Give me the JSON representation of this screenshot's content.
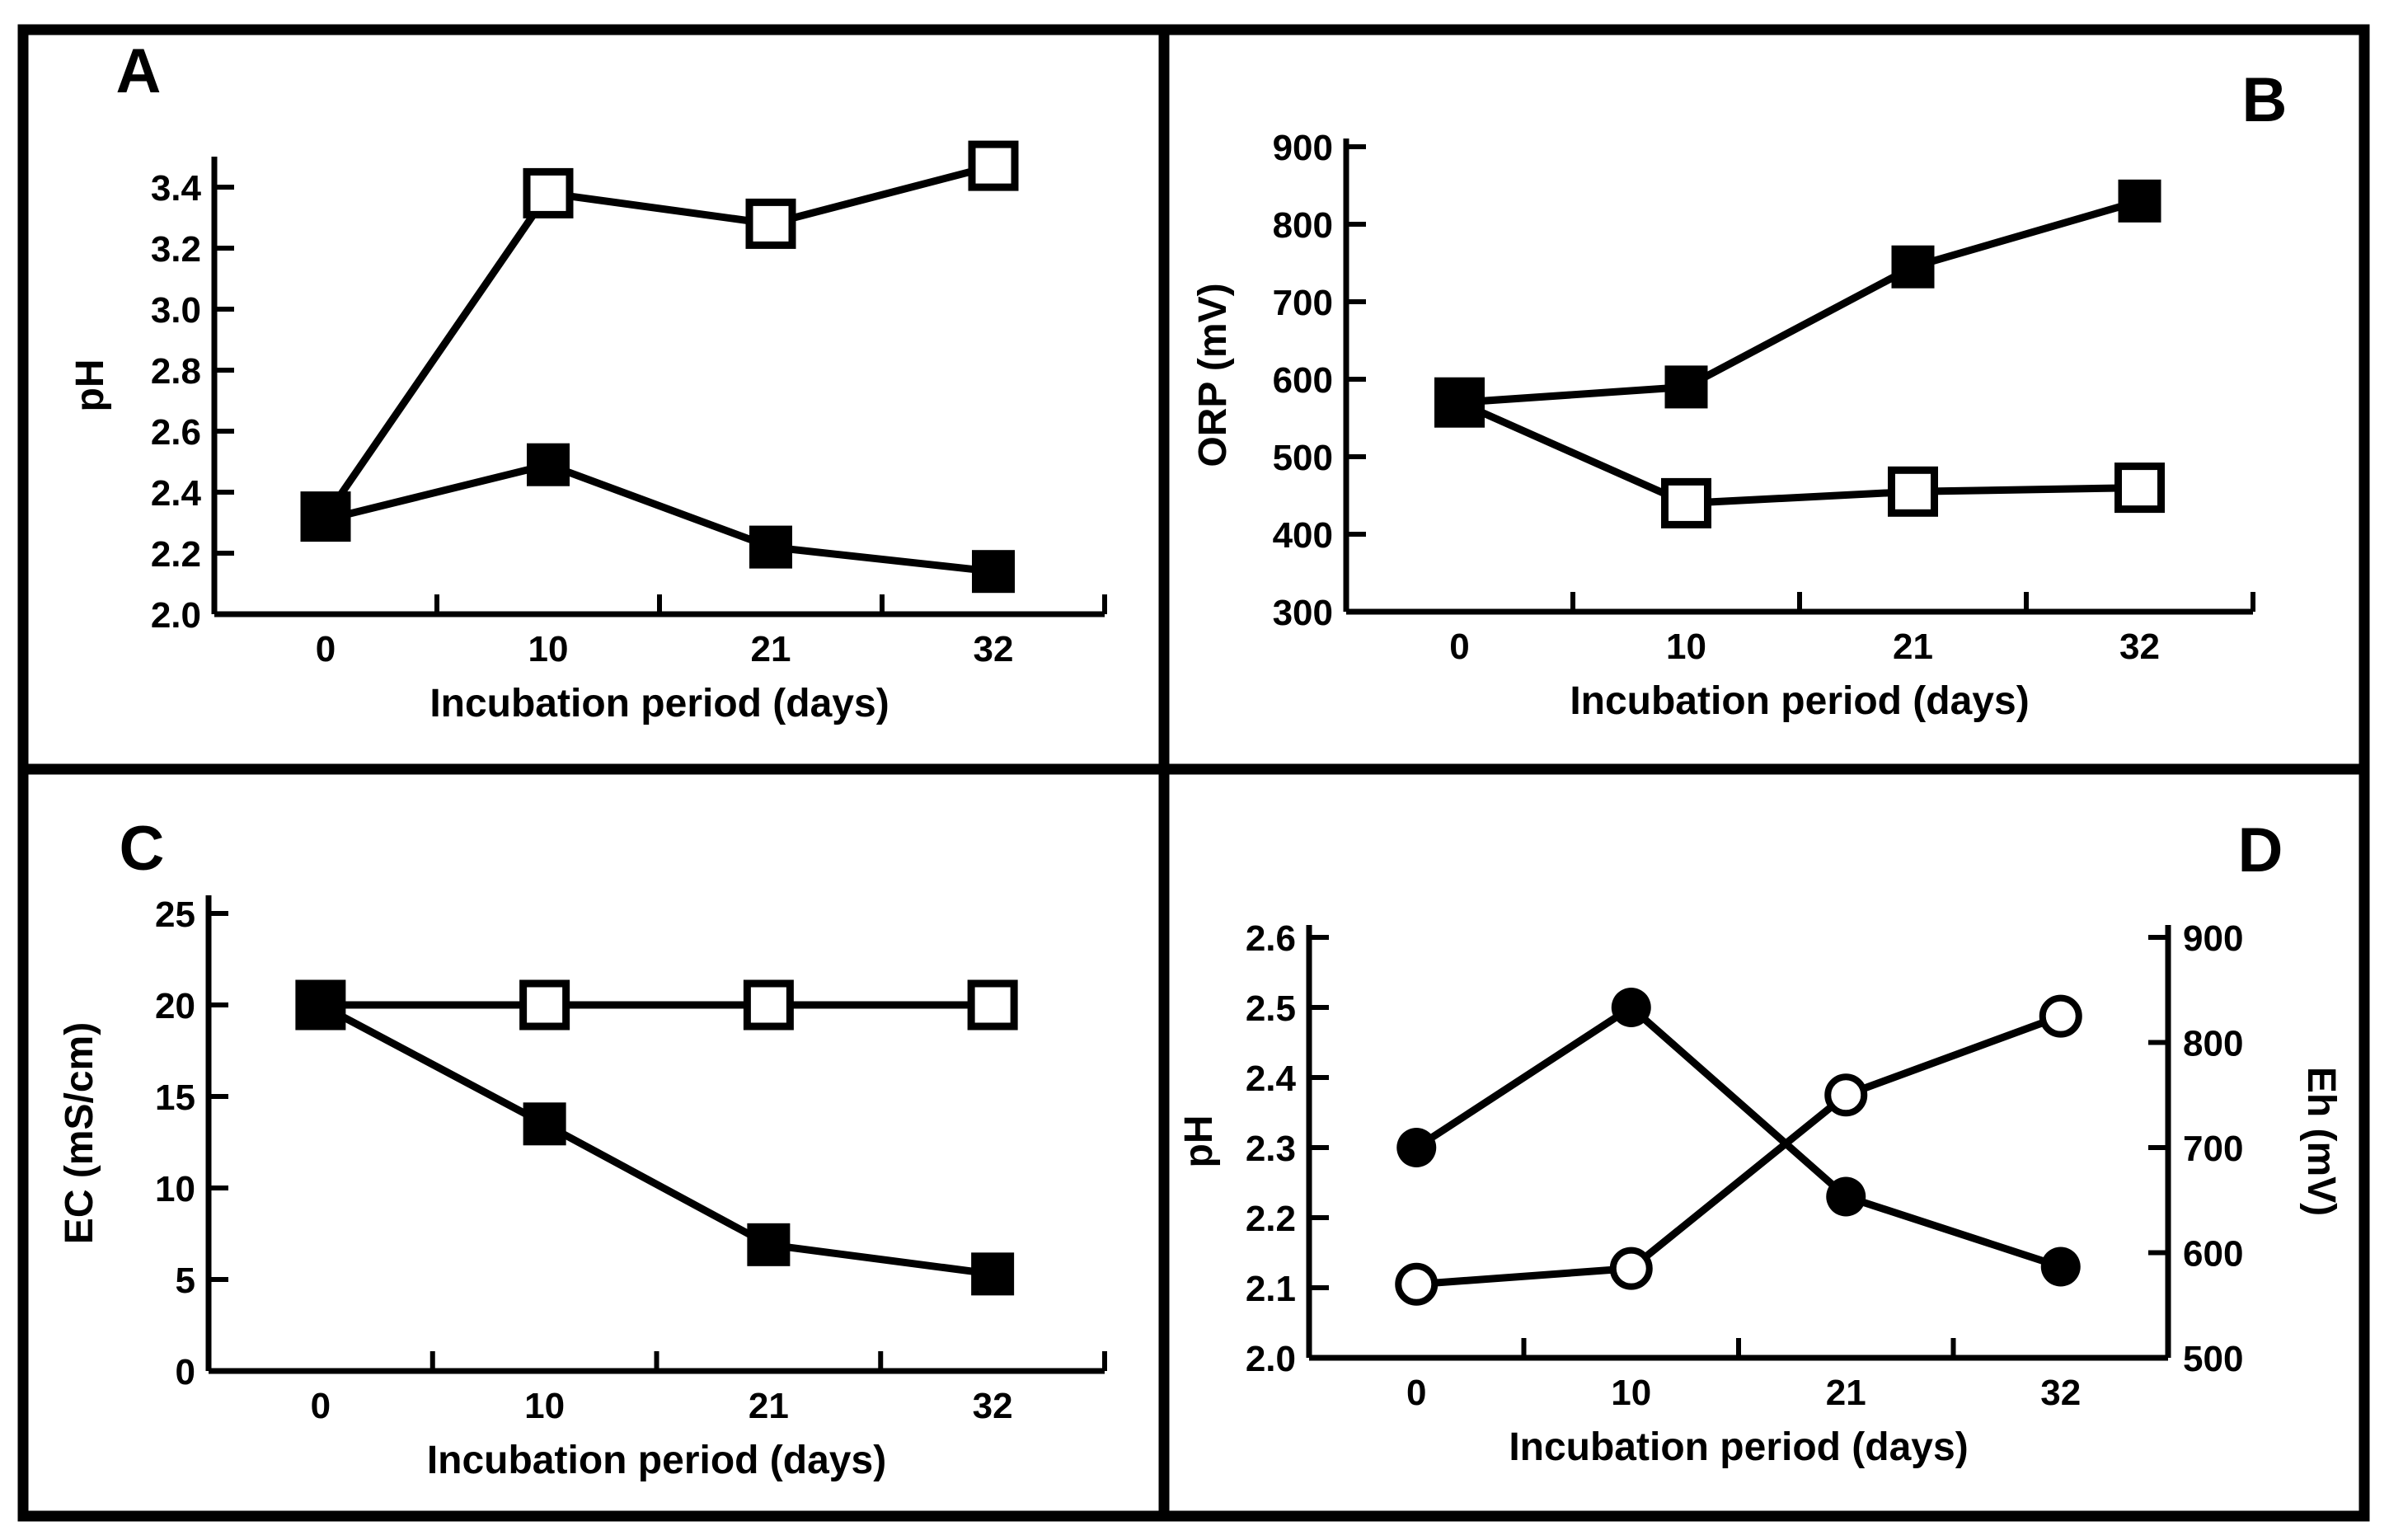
{
  "figure": {
    "description_visible_text_only": "",
    "colors": {
      "foreground": "#000000",
      "background": "#ffffff"
    }
  },
  "chart_data": [
    {
      "panel_label": "A",
      "type": "line",
      "xlabel": "Incubation period (days)",
      "ylabel": "pH",
      "x_categories": [
        "0",
        "10",
        "21",
        "32"
      ],
      "yticks": [
        2.0,
        2.2,
        2.4,
        2.6,
        2.8,
        3.0,
        3.2,
        3.4
      ],
      "ytick_labels": [
        "2.0",
        "2.2",
        "2.4",
        "2.6",
        "2.8",
        "3.0",
        "3.2",
        "3.4"
      ],
      "ylim": [
        2.0,
        3.5
      ],
      "grid": "off",
      "legend": "none",
      "series": [
        {
          "name": "open squares",
          "marker": "square-open",
          "values": [
            2.32,
            3.38,
            3.28,
            3.47
          ]
        },
        {
          "name": "filled squares",
          "marker": "square-filled",
          "values": [
            2.31,
            2.49,
            2.22,
            2.14
          ]
        }
      ]
    },
    {
      "panel_label": "B",
      "type": "line",
      "xlabel": "Incubation period (days)",
      "ylabel": "ORP (mV)",
      "x_categories": [
        "0",
        "10",
        "21",
        "32"
      ],
      "yticks": [
        300,
        400,
        500,
        600,
        700,
        800,
        900
      ],
      "ytick_labels": [
        "300",
        "400",
        "500",
        "600",
        "700",
        "800",
        "900"
      ],
      "ylim": [
        300,
        910
      ],
      "grid": "off",
      "legend": "none",
      "series": [
        {
          "name": "open squares",
          "marker": "square-open",
          "values": [
            570,
            440,
            455,
            460
          ]
        },
        {
          "name": "filled squares",
          "marker": "square-filled",
          "values": [
            570,
            590,
            745,
            830
          ]
        }
      ]
    },
    {
      "panel_label": "C",
      "type": "line",
      "xlabel": "Incubation period (days)",
      "ylabel": "EC (mS/cm)",
      "x_categories": [
        "0",
        "10",
        "21",
        "32"
      ],
      "yticks": [
        0,
        5,
        10,
        15,
        20,
        25
      ],
      "ytick_labels": [
        "0",
        "5",
        "10",
        "15",
        "20",
        "25"
      ],
      "ylim": [
        0,
        26
      ],
      "grid": "off",
      "legend": "none",
      "series": [
        {
          "name": "open squares",
          "marker": "square-open",
          "values": [
            20,
            20,
            20,
            20
          ]
        },
        {
          "name": "filled squares",
          "marker": "square-filled",
          "values": [
            20,
            13.5,
            6.9,
            5.3
          ]
        }
      ]
    },
    {
      "panel_label": "D",
      "type": "line",
      "xlabel": "Incubation period (days)",
      "ylabel_left": "pH",
      "ylabel_right": "Eh (mV)",
      "x_categories": [
        "0",
        "10",
        "21",
        "32"
      ],
      "yticks_left": [
        2.0,
        2.1,
        2.2,
        2.3,
        2.4,
        2.5,
        2.6
      ],
      "ytick_labels_left": [
        "2.0",
        "2.1",
        "2.2",
        "2.3",
        "2.4",
        "2.5",
        "2.6"
      ],
      "ylim_left": [
        2.0,
        2.62
      ],
      "yticks_right": [
        500,
        600,
        700,
        800,
        900
      ],
      "ytick_labels_right": [
        "500",
        "600",
        "700",
        "800",
        "900"
      ],
      "ylim_right": [
        500,
        910
      ],
      "grid": "off",
      "legend": "none",
      "series": [
        {
          "name": "open circles (Eh)",
          "axis": "right",
          "marker": "circle-open",
          "values": [
            570,
            585,
            750,
            825
          ]
        },
        {
          "name": "filled circles (pH)",
          "axis": "left",
          "marker": "circle-filled",
          "values": [
            2.3,
            2.5,
            2.23,
            2.13
          ]
        }
      ]
    }
  ]
}
